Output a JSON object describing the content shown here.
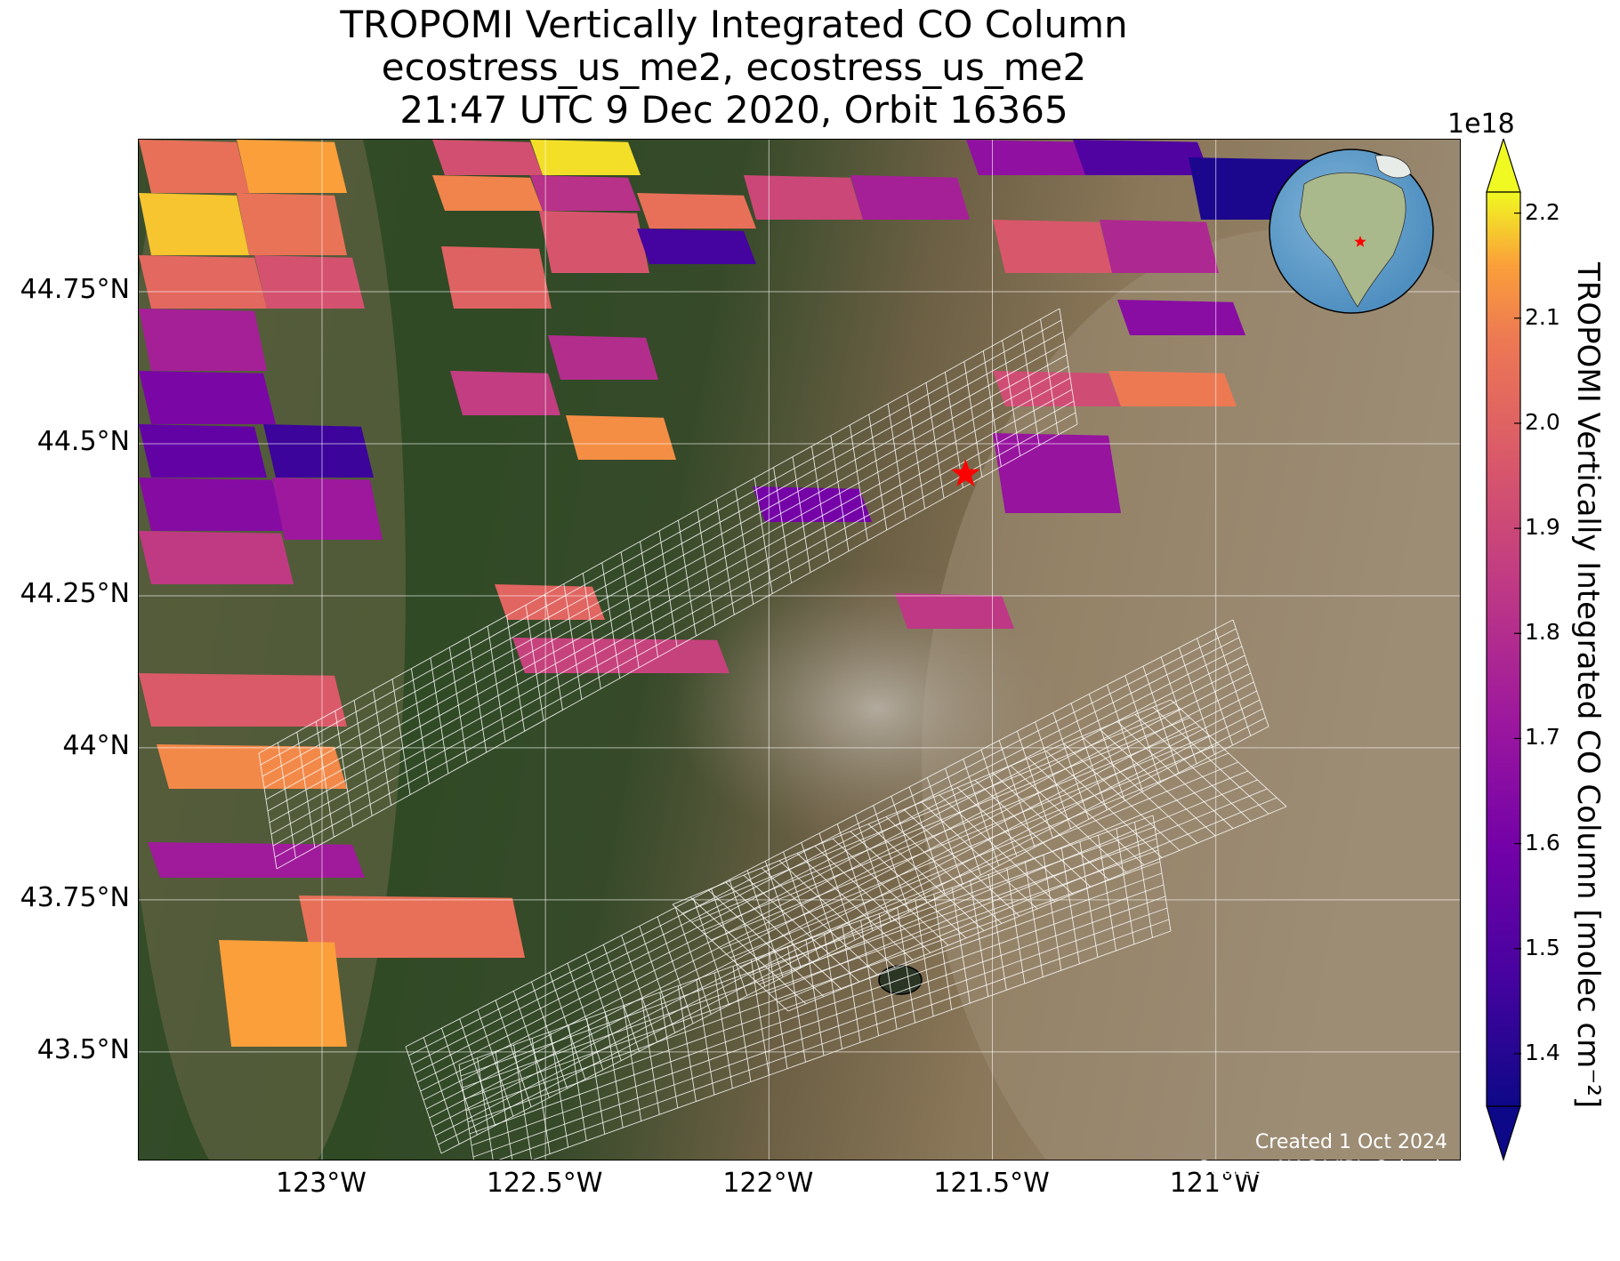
{
  "title": {
    "line1": "TROPOMI Vertically Integrated CO Column",
    "line2": "ecostress_us_me2, ecostress_us_me2",
    "line3": "21:47 UTC 9 Dec 2020, Orbit 16365"
  },
  "map": {
    "lon_range": [
      -123.41,
      -120.45
    ],
    "lat_range": [
      43.32,
      45.0
    ],
    "lat_ticks": [
      {
        "value": 44.75,
        "label": "44.75°N"
      },
      {
        "value": 44.5,
        "label": "44.5°N"
      },
      {
        "value": 44.25,
        "label": "44.25°N"
      },
      {
        "value": 44.0,
        "label": "44°N"
      },
      {
        "value": 43.75,
        "label": "43.75°N"
      },
      {
        "value": 43.5,
        "label": "43.5°N"
      }
    ],
    "lon_ticks": [
      {
        "value": -123.0,
        "label": "123°W"
      },
      {
        "value": -122.5,
        "label": "122.5°W"
      },
      {
        "value": -122.0,
        "label": "122°W"
      },
      {
        "value": -121.5,
        "label": "121.5°W"
      },
      {
        "value": -121.0,
        "label": "121°W"
      }
    ],
    "site_marker": {
      "lon": -121.56,
      "lat": 44.45,
      "color": "#ff0000",
      "shape": "star"
    },
    "inset_globe": {
      "marker_color": "#ff0000",
      "marker_shape": "star"
    },
    "gridlines": true
  },
  "colorbar": {
    "colormap": "plasma",
    "range": [
      1.35,
      2.22
    ],
    "exponent": "1e18",
    "ticks": [
      "2.2",
      "2.1",
      "2.0",
      "1.9",
      "1.8",
      "1.7",
      "1.6",
      "1.5",
      "1.4"
    ],
    "label": "TROPOMI Vertically Integrated CO Column [molec cm⁻²]",
    "extend": "both"
  },
  "credit": {
    "line1": "Created 1 Oct 2024",
    "line2": "Source: NASA/JPL-Caltech"
  },
  "pixel_values": [
    2.05,
    2.15,
    2.18,
    2.06,
    2.02,
    1.94,
    1.75,
    1.62,
    1.55,
    1.45,
    1.65,
    1.72,
    1.85,
    1.93,
    2.1,
    2.2,
    1.82,
    1.95,
    2.0,
    2.05,
    1.9,
    1.75,
    1.68,
    1.5,
    1.38,
    1.47,
    1.8,
    1.86,
    2.12,
    1.96,
    1.78,
    1.92,
    2.08,
    1.7,
    1.66,
    1.6,
    1.84,
    2.01,
    1.88,
    1.97,
    2.11,
    1.73
  ]
}
